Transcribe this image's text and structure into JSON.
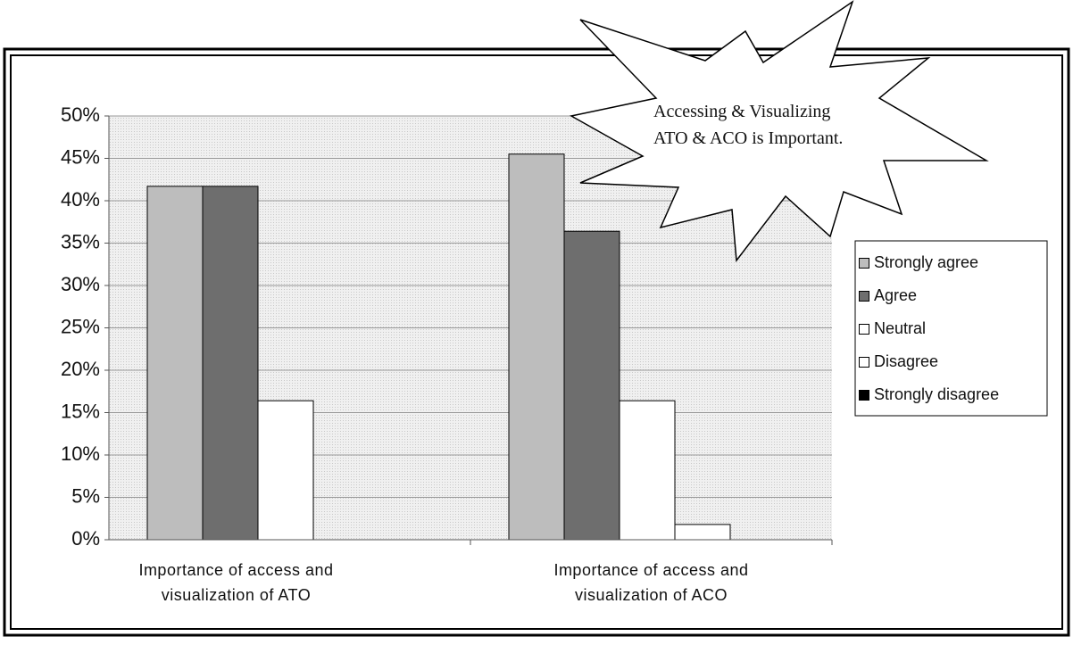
{
  "chart_data": {
    "type": "bar",
    "categories": [
      "Importance of access and visualization of ATO",
      "Importance of access and visualization of ACO"
    ],
    "series": [
      {
        "name": "Strongly agree",
        "color": "#bdbdbd",
        "values": [
          41.7,
          45.5
        ]
      },
      {
        "name": "Agree",
        "color": "#6e6e6e",
        "values": [
          41.7,
          36.4
        ]
      },
      {
        "name": "Neutral",
        "color": "#ffffff",
        "values": [
          16.4,
          16.4
        ]
      },
      {
        "name": "Disagree",
        "color": "#ffffff",
        "values": [
          0,
          1.8
        ]
      },
      {
        "name": "Strongly disagree",
        "color": "#000000",
        "values": [
          0,
          0
        ]
      }
    ],
    "ylim": [
      0,
      50
    ],
    "yticks": [
      {
        "value": 0,
        "label": "0%"
      },
      {
        "value": 5,
        "label": "5%"
      },
      {
        "value": 10,
        "label": "10%"
      },
      {
        "value": 15,
        "label": "15%"
      },
      {
        "value": 20,
        "label": "20%"
      },
      {
        "value": 25,
        "label": "25%"
      },
      {
        "value": 30,
        "label": "30%"
      },
      {
        "value": 35,
        "label": "35%"
      },
      {
        "value": 40,
        "label": "40%"
      },
      {
        "value": 45,
        "label": "45%"
      },
      {
        "value": 50,
        "label": "50%"
      }
    ],
    "grid": true,
    "legend": "right",
    "annotation": "Accessing & Visualizing ATO & ACO is Important."
  }
}
